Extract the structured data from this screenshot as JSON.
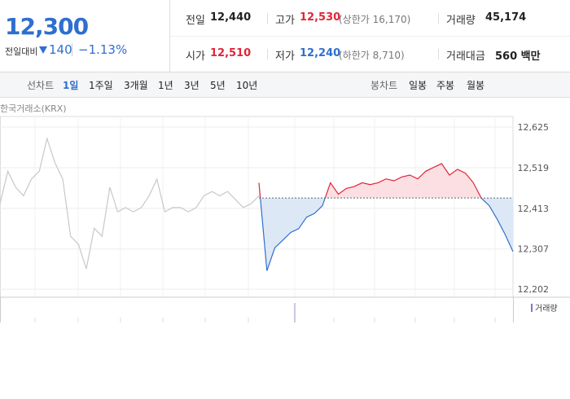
{
  "quote": {
    "price": "12,300",
    "change_label": "전일대비",
    "change": "140",
    "change_pct": "−1.13%"
  },
  "stats": [
    {
      "label": "전일",
      "value": "12,440"
    },
    {
      "label": "고가",
      "value": "12,530",
      "note": "(상한가 16,170)"
    },
    {
      "label": "거래량",
      "value": "45,174"
    },
    {
      "label": "시가",
      "value": "12,510"
    },
    {
      "label": "저가",
      "value": "12,240",
      "note": "(하한가 8,710)"
    },
    {
      "label": "거래대금",
      "value": "560 백만"
    }
  ],
  "tabs": {
    "label": "선차트",
    "items": [
      "1일",
      "1주일",
      "3개월",
      "1년",
      "3년",
      "5년",
      "10년"
    ]
  },
  "candle_tabs": {
    "label": "봉차트",
    "items": [
      "일봉",
      "주봉",
      "월봉"
    ]
  },
  "chart_data": {
    "type": "line",
    "source": "한국거래소(KRX)",
    "volume_label": "거래량",
    "ylim": [
      12181,
      12653
    ],
    "yticks": [
      {
        "value": 12625,
        "label": "12,625"
      },
      {
        "value": 12519,
        "label": "12,519"
      },
      {
        "value": 12413,
        "label": "12,413"
      },
      {
        "value": 12307,
        "label": "12,307"
      },
      {
        "value": 12202,
        "label": "12,202"
      }
    ],
    "baseline": 12440,
    "up_color": "#e0263a",
    "down_color": "#2f6fcf",
    "up_fill": "#fbdfe2",
    "down_fill": "#dde8f6",
    "series": [
      {
        "color": "#c8c8c8",
        "values": [
          12425,
          12510,
          12468,
          12446,
          12489,
          12510,
          12595,
          12532,
          12489,
          12340,
          12319,
          12255,
          12361,
          12340,
          12468,
          12404,
          12415,
          12404,
          12415,
          12446,
          12489,
          12404,
          12415,
          12415,
          12404,
          12415,
          12446,
          12457,
          12446,
          12457,
          12436,
          12415,
          12425,
          12446
        ]
      },
      {
        "color": "#2f6fcf",
        "values": [
          12480,
          12250,
          12310,
          12330,
          12350,
          12360,
          12390,
          12400,
          12420,
          12480,
          12450,
          12465,
          12470,
          12480,
          12475,
          12480,
          12490,
          12485,
          12495,
          12500,
          12490,
          12510,
          12520,
          12530,
          12500,
          12515,
          12505,
          12480,
          12440,
          12420,
          12385,
          12345,
          12300
        ]
      }
    ]
  }
}
